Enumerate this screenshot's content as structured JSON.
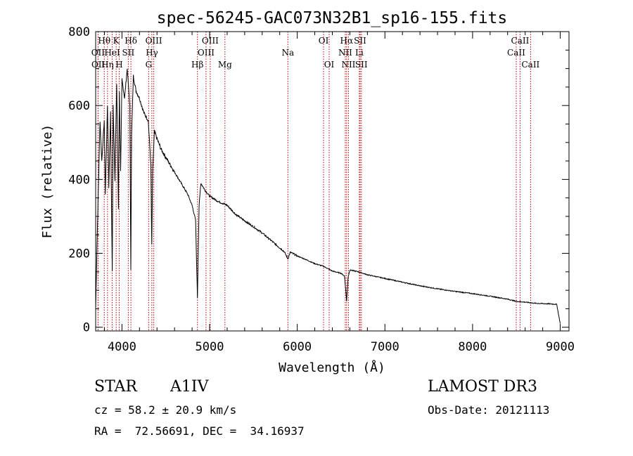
{
  "chart_data": {
    "type": "line",
    "title": "spec-56245-GAC073N32B1_sp16-155.fits",
    "xlabel": "Wavelength (Å)",
    "ylabel": "Flux (relative)",
    "xlim": [
      3700,
      9100
    ],
    "ylim": [
      -10,
      800
    ],
    "x_ticks": [
      4000,
      5000,
      6000,
      7000,
      8000,
      9000
    ],
    "x_tick_labels": [
      "4000",
      "5000",
      "6000",
      "7000",
      "8000",
      "9000"
    ],
    "y_ticks": [
      0,
      200,
      400,
      600,
      800
    ],
    "y_tick_labels": [
      "0",
      "200",
      "400",
      "600",
      "800"
    ],
    "series": [
      {
        "name": "spectrum",
        "x": [
          3700,
          3720,
          3750,
          3770,
          3798,
          3810,
          3835,
          3850,
          3870,
          3889,
          3900,
          3920,
          3940,
          3960,
          3970,
          3985,
          4000,
          4030,
          4060,
          4090,
          4101,
          4110,
          4130,
          4160,
          4200,
          4250,
          4300,
          4330,
          4340,
          4350,
          4370,
          4400,
          4450,
          4500,
          4550,
          4600,
          4650,
          4700,
          4750,
          4800,
          4840,
          4861,
          4880,
          4900,
          4950,
          5000,
          5100,
          5200,
          5300,
          5400,
          5500,
          5600,
          5700,
          5800,
          5850,
          5893,
          5920,
          6000,
          6100,
          6200,
          6300,
          6400,
          6500,
          6540,
          6563,
          6580,
          6600,
          6700,
          6800,
          7000,
          7200,
          7400,
          7600,
          7800,
          8000,
          8200,
          8400,
          8500,
          8600,
          8700,
          8800,
          8900,
          8960,
          9000
        ],
        "values": [
          50,
          270,
          560,
          450,
          560,
          360,
          600,
          380,
          580,
          150,
          600,
          400,
          660,
          320,
          640,
          420,
          670,
          620,
          700,
          600,
          160,
          520,
          680,
          640,
          620,
          580,
          560,
          440,
          220,
          420,
          530,
          510,
          480,
          460,
          440,
          420,
          400,
          380,
          360,
          330,
          290,
          80,
          330,
          390,
          370,
          355,
          340,
          330,
          305,
          288,
          272,
          255,
          235,
          215,
          205,
          185,
          203,
          193,
          183,
          172,
          165,
          152,
          146,
          138,
          70,
          135,
          155,
          150,
          142,
          132,
          122,
          112,
          104,
          97,
          91,
          84,
          76,
          70,
          68,
          65,
          64,
          63,
          62,
          10
        ]
      }
    ],
    "line_color": "#000000",
    "lines": [
      {
        "label": "Hθ",
        "x": 3798,
        "row": 1
      },
      {
        "label": "OII",
        "x": 3727,
        "row": 2
      },
      {
        "label": "OII",
        "x": 3729,
        "row": 3
      },
      {
        "label": "Hη",
        "x": 3835,
        "row": 3
      },
      {
        "label": "HeI",
        "x": 3889,
        "row": 2
      },
      {
        "label": "K",
        "x": 3934,
        "row": 1
      },
      {
        "label": "SII",
        "x": 4072,
        "row": 2
      },
      {
        "label": "H",
        "x": 3969,
        "row": 3
      },
      {
        "label": "Hδ",
        "x": 4102,
        "row": 1
      },
      {
        "label": "OIII",
        "x": 4363,
        "row": 1
      },
      {
        "label": "Hγ",
        "x": 4341,
        "row": 2
      },
      {
        "label": "G",
        "x": 4305,
        "row": 3
      },
      {
        "label": "Hβ",
        "x": 4861,
        "row": 3
      },
      {
        "label": "OIII",
        "x": 5007,
        "row": 1
      },
      {
        "label": "OIII",
        "x": 4959,
        "row": 2
      },
      {
        "label": "Mg",
        "x": 5175,
        "row": 3
      },
      {
        "label": "Na",
        "x": 5893,
        "row": 2
      },
      {
        "label": "OI",
        "x": 6300,
        "row": 1
      },
      {
        "label": "OI",
        "x": 6364,
        "row": 3
      },
      {
        "label": "Hα",
        "x": 6563,
        "row": 1
      },
      {
        "label": "NII",
        "x": 6548,
        "row": 2
      },
      {
        "label": "NII",
        "x": 6584,
        "row": 3
      },
      {
        "label": "SII",
        "x": 6717,
        "row": 1
      },
      {
        "label": "Li",
        "x": 6708,
        "row": 2
      },
      {
        "label": "SII",
        "x": 6731,
        "row": 3
      },
      {
        "label": "CaII",
        "x": 8542,
        "row": 1
      },
      {
        "label": "CaII",
        "x": 8498,
        "row": 2
      },
      {
        "label": "CaII",
        "x": 8662,
        "row": 3
      }
    ],
    "marker_color": "#c00000"
  },
  "info": {
    "class": "STAR",
    "subclass": "A1IV",
    "survey": "LAMOST DR3",
    "cz": "cz = 58.2 ± 20.9 km/s",
    "obs_date": "Obs-Date: 20121113",
    "coords": "RA =  72.56691, DEC =  34.16937"
  }
}
